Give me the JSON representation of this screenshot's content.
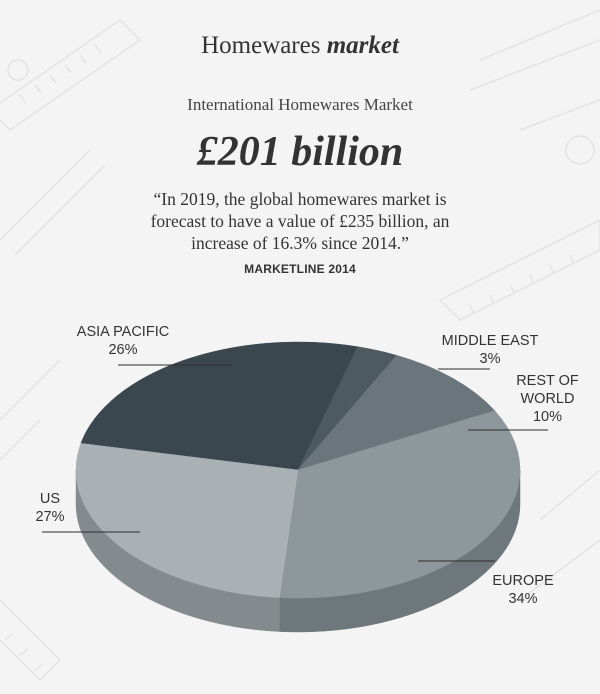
{
  "header": {
    "title_plain": "Homewares",
    "title_emph": "market",
    "subtitle": "International Homewares Market",
    "big_value": "£201 billion",
    "quote": "“In 2019, the global homewares market is forecast to have a value of £235 billion, an increase of 16.3% since 2014.”",
    "source": "MARKETLINE 2014"
  },
  "chart_data": {
    "type": "pie",
    "title": "International Homewares Market",
    "total_label": "£201 billion",
    "unit": "%",
    "slices": [
      {
        "name": "ASIA PACIFIC",
        "value": 26,
        "label": "26%",
        "color": "#3a474f",
        "side_color": "#2c373e"
      },
      {
        "name": "MIDDLE EAST",
        "value": 3,
        "label": "3%",
        "color": "#4d5a61",
        "side_color": "#3c474d"
      },
      {
        "name": "REST OF WORLD",
        "value": 10,
        "label": "10%",
        "color": "#6a767c",
        "side_color": "#545e63"
      },
      {
        "name": "EUROPE",
        "value": 34,
        "label": "34%",
        "color": "#8d979c",
        "side_color": "#6e777b"
      },
      {
        "name": "US",
        "value": 27,
        "label": "27%",
        "color": "#a9b1b5",
        "side_color": "#838b8f"
      }
    ]
  },
  "labels": {
    "asia_pacific": {
      "name": "ASIA PACIFIC",
      "value": "26%"
    },
    "middle_east": {
      "name": "MIDDLE EAST",
      "value": "3%"
    },
    "rest_of_world_line1": "REST OF",
    "rest_of_world_line2": "WORLD",
    "rest_of_world_value": "10%",
    "europe": {
      "name": "EUROPE",
      "value": "34%"
    },
    "us": {
      "name": "US",
      "value": "27%"
    }
  },
  "colors": {
    "background": "#f4f4f4",
    "text": "#333333",
    "decor_line": "#e2e2e2"
  }
}
